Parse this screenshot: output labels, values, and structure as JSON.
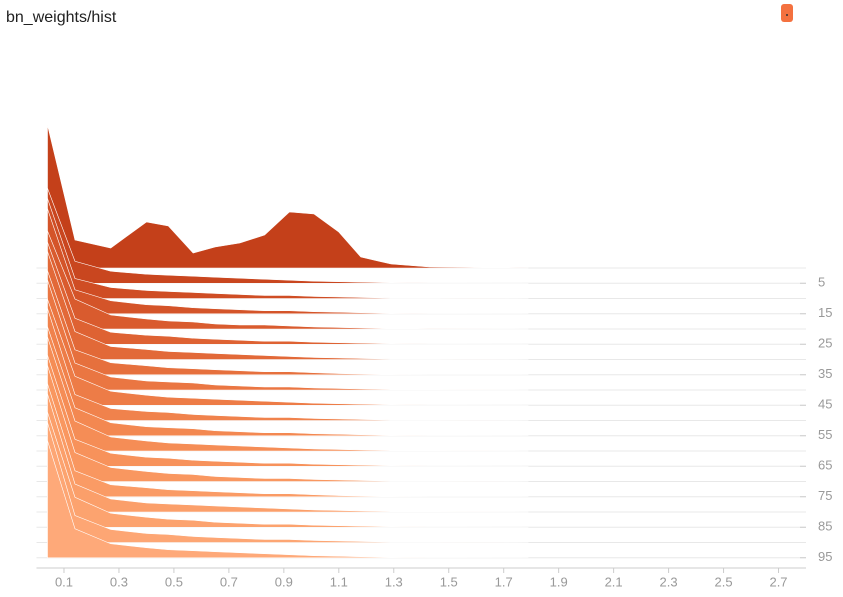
{
  "chart_data": {
    "type": "histogram-ridgeline",
    "title": "bn_weights/hist",
    "x": [
      0.04,
      0.14,
      0.27,
      0.4,
      0.48,
      0.57,
      0.65,
      0.74,
      0.83,
      0.92,
      1.01,
      1.1,
      1.18,
      1.29,
      1.43,
      1.79
    ],
    "xlim": [
      0,
      2.8
    ],
    "xticks": [
      0.1,
      0.3,
      0.5,
      0.7,
      0.9,
      1.1,
      1.3,
      1.5,
      1.7,
      1.9,
      2.1,
      2.3,
      2.5,
      2.7
    ],
    "ylim": [
      0,
      100
    ],
    "yticks": [
      5,
      15,
      25,
      35,
      45,
      55,
      65,
      75,
      85,
      95
    ],
    "grid": true,
    "series": [
      {
        "step": 0,
        "color": "#c4401a",
        "values": [
          143,
          28,
          20,
          46,
          42,
          15,
          21,
          25,
          33,
          56,
          54,
          36,
          11,
          4,
          1,
          0
        ]
      },
      {
        "step": 5,
        "color": "#c9461f",
        "values": [
          95,
          22,
          12,
          9,
          8,
          7,
          6,
          5,
          4,
          3,
          2,
          1.5,
          1,
          0.5,
          0.2,
          0
        ]
      },
      {
        "step": 10,
        "color": "#cf4d24",
        "values": [
          100,
          20,
          11,
          8,
          7,
          6,
          5,
          4,
          3,
          3,
          2,
          1.5,
          1,
          0.5,
          0.2,
          0
        ]
      },
      {
        "step": 15,
        "color": "#d45429",
        "values": [
          105,
          24,
          13,
          9,
          8,
          6,
          5,
          4,
          3,
          3,
          2,
          1.5,
          1,
          0.5,
          0.2,
          0
        ]
      },
      {
        "step": 20,
        "color": "#d95b2e",
        "values": [
          98,
          30,
          14,
          10,
          8,
          7,
          5,
          4,
          4,
          3,
          2,
          1.5,
          1,
          0.4,
          0.1,
          0
        ]
      },
      {
        "step": 25,
        "color": "#de6233",
        "values": [
          102,
          26,
          12,
          9,
          8,
          6,
          5,
          4,
          3,
          3,
          2,
          1.5,
          1,
          0.5,
          0.2,
          0
        ]
      },
      {
        "step": 30,
        "color": "#e26938",
        "values": [
          108,
          28,
          13,
          10,
          8,
          7,
          6,
          5,
          4,
          3,
          2,
          1.5,
          1,
          0.5,
          0.2,
          0
        ]
      },
      {
        "step": 35,
        "color": "#e6703d",
        "values": [
          104,
          25,
          12,
          9,
          7,
          6,
          5,
          4,
          3,
          3,
          2,
          1.2,
          0.8,
          0.4,
          0.1,
          0
        ]
      },
      {
        "step": 40,
        "color": "#ea7642",
        "values": [
          110,
          27,
          13,
          9,
          8,
          7,
          5,
          4,
          3,
          3,
          2,
          1.5,
          1,
          0.5,
          0.2,
          0
        ]
      },
      {
        "step": 45,
        "color": "#ed7c47",
        "values": [
          106,
          29,
          14,
          10,
          8,
          7,
          6,
          5,
          4,
          3,
          2,
          1.5,
          1,
          0.5,
          0.2,
          0
        ]
      },
      {
        "step": 50,
        "color": "#f0824c",
        "values": [
          112,
          26,
          12,
          9,
          8,
          6,
          5,
          4,
          3,
          3,
          2,
          1.5,
          1,
          0.5,
          0.2,
          0
        ]
      },
      {
        "step": 55,
        "color": "#f38851",
        "values": [
          109,
          28,
          13,
          9,
          8,
          7,
          5,
          4,
          3,
          3,
          2,
          1.5,
          1,
          0.5,
          0.2,
          0
        ]
      },
      {
        "step": 60,
        "color": "#f58d56",
        "values": [
          114,
          30,
          14,
          10,
          8,
          7,
          6,
          5,
          4,
          3,
          2,
          1.5,
          1,
          0.5,
          0.2,
          0
        ]
      },
      {
        "step": 65,
        "color": "#f7925b",
        "values": [
          111,
          27,
          13,
          9,
          8,
          6,
          5,
          4,
          3,
          3,
          2,
          1.5,
          1,
          0.5,
          0.2,
          0
        ]
      },
      {
        "step": 70,
        "color": "#f99760",
        "values": [
          116,
          29,
          14,
          10,
          8,
          7,
          5,
          4,
          3,
          3,
          2,
          1.5,
          1,
          0.5,
          0.2,
          0
        ]
      },
      {
        "step": 75,
        "color": "#fa9b65",
        "values": [
          113,
          26,
          12,
          9,
          7,
          6,
          5,
          4,
          3,
          3,
          2,
          1.2,
          0.8,
          0.4,
          0.1,
          0
        ]
      },
      {
        "step": 80,
        "color": "#fb9f6a",
        "values": [
          118,
          28,
          13,
          9,
          8,
          7,
          6,
          5,
          4,
          3,
          2,
          1.5,
          1,
          0.5,
          0.2,
          0
        ]
      },
      {
        "step": 85,
        "color": "#fca36f",
        "values": [
          115,
          30,
          14,
          10,
          8,
          7,
          5,
          4,
          3,
          3,
          2,
          1.5,
          1,
          0.5,
          0.2,
          0
        ]
      },
      {
        "step": 90,
        "color": "#fda674",
        "values": [
          120,
          27,
          13,
          9,
          8,
          6,
          5,
          4,
          3,
          3,
          2,
          1.5,
          1,
          0.5,
          0.2,
          0
        ]
      },
      {
        "step": 95,
        "color": "#fea979",
        "values": [
          117,
          29,
          14,
          10,
          8,
          7,
          6,
          5,
          4,
          3,
          2,
          1.5,
          1,
          0.5,
          0.2,
          0
        ]
      }
    ]
  }
}
